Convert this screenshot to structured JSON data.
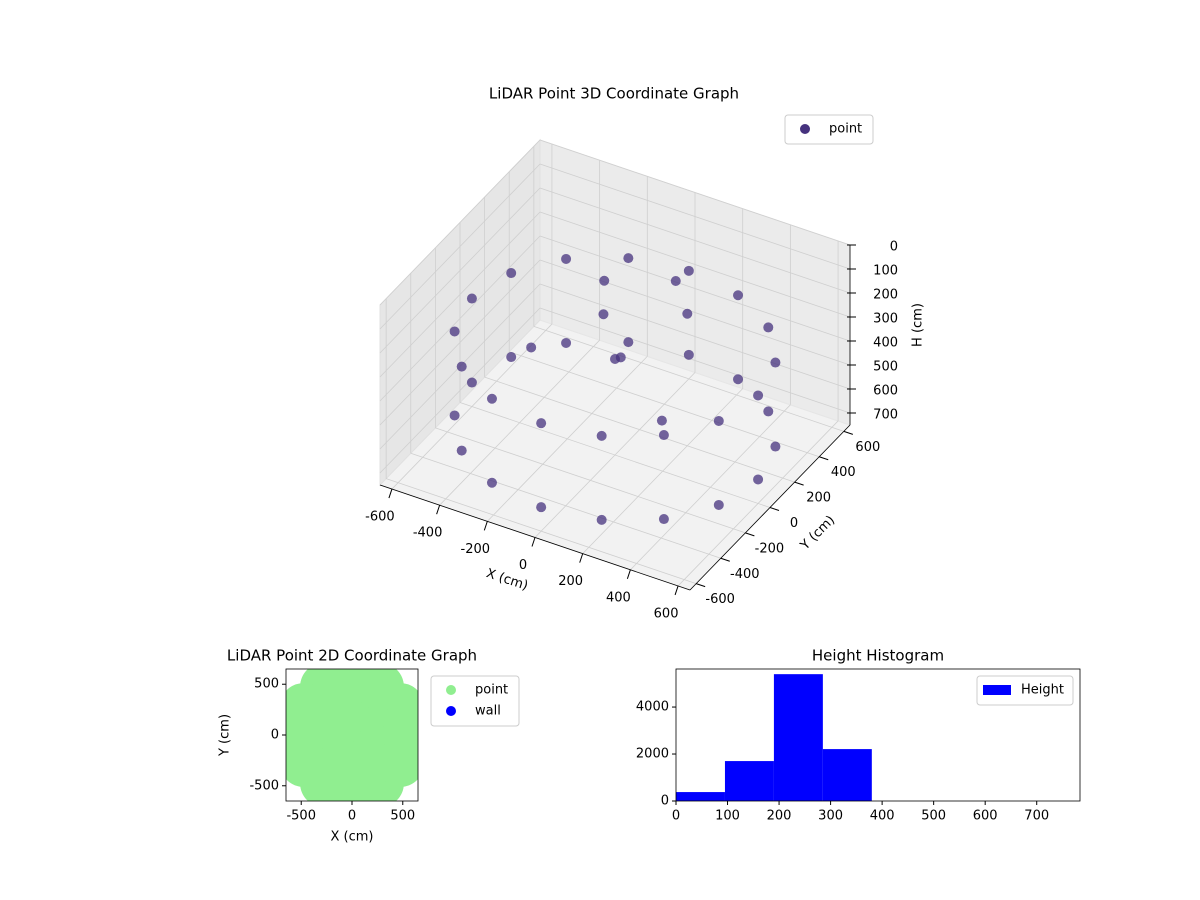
{
  "chart_data": [
    {
      "type": "scatter3d",
      "title": "LiDAR Point 3D Coordinate Graph",
      "xlabel": "X (cm)",
      "ylabel": "Y (cm)",
      "zlabel": "H (cm)",
      "xlim": [
        -650,
        650
      ],
      "ylim": [
        -650,
        650
      ],
      "zlim": [
        750,
        0
      ],
      "xticks": [
        -600,
        -400,
        -200,
        0,
        200,
        400,
        600
      ],
      "yticks": [
        -600,
        -400,
        -200,
        0,
        200,
        400,
        600
      ],
      "zticks": [
        0,
        100,
        200,
        300,
        400,
        500,
        600,
        700
      ],
      "legend": "upper right",
      "series": [
        {
          "name": "point",
          "color": "#46327e",
          "x": [
            600,
            554,
            424,
            230,
            0,
            -230,
            -424,
            -554,
            -600,
            -554,
            -424,
            -230,
            0,
            230,
            424,
            554,
            600,
            554,
            424,
            230,
            0,
            -230,
            -424,
            -554,
            -600,
            -554,
            -424,
            -230,
            0,
            230,
            424,
            554,
            -100,
            50,
            200,
            -300,
            100,
            300,
            -200,
            0
          ],
          "y": [
            0,
            230,
            424,
            554,
            600,
            554,
            424,
            230,
            0,
            -230,
            -424,
            -554,
            -600,
            -554,
            -424,
            -230,
            0,
            230,
            424,
            554,
            600,
            554,
            424,
            230,
            0,
            -230,
            -424,
            -554,
            -600,
            -554,
            -424,
            -230,
            100,
            -50,
            200,
            -100,
            300,
            -200,
            300,
            0
          ],
          "h": [
            300,
            300,
            300,
            300,
            300,
            300,
            300,
            300,
            300,
            300,
            300,
            300,
            300,
            300,
            300,
            300,
            650,
            650,
            650,
            650,
            650,
            650,
            650,
            650,
            650,
            650,
            650,
            650,
            650,
            650,
            650,
            650,
            250,
            300,
            200,
            350,
            150,
            400,
            250,
            350
          ]
        }
      ]
    },
    {
      "type": "scatter",
      "title": "LiDAR Point 2D Coordinate Graph",
      "xlabel": "X (cm)",
      "ylabel": "Y (cm)",
      "xlim": [
        -650,
        650
      ],
      "ylim": [
        -650,
        650
      ],
      "xticks": [
        -500,
        0,
        500
      ],
      "yticks": [
        -500,
        0,
        500
      ],
      "legend": "outside",
      "series": [
        {
          "name": "point",
          "color": "#90ee90",
          "x": [
            0,
            300,
            150,
            -150,
            -300,
            -150,
            150,
            550,
            476,
            275,
            0,
            -275,
            -476,
            -550,
            -476,
            -275,
            0,
            275,
            476
          ],
          "y": [
            0,
            0,
            260,
            260,
            0,
            -260,
            -260,
            0,
            275,
            476,
            550,
            476,
            275,
            0,
            -275,
            -476,
            -550,
            -476,
            -275
          ]
        },
        {
          "name": "wall",
          "color": "#0000ff",
          "x": [],
          "y": []
        }
      ]
    },
    {
      "type": "hist",
      "title": "Height Histogram",
      "xlim": [
        0,
        784
      ],
      "ylim": [
        0,
        5620
      ],
      "xticks": [
        0,
        100,
        200,
        300,
        400,
        500,
        600,
        700
      ],
      "yticks": [
        0,
        2000,
        4000
      ],
      "legend": "upper right",
      "series": [
        {
          "name": "Height",
          "color": "#0000ff",
          "bins": [
            0,
            95,
            190,
            285,
            380,
            475,
            570,
            665,
            760
          ],
          "values": [
            380,
            1700,
            5400,
            2210,
            0,
            0,
            0,
            0
          ]
        }
      ]
    }
  ]
}
